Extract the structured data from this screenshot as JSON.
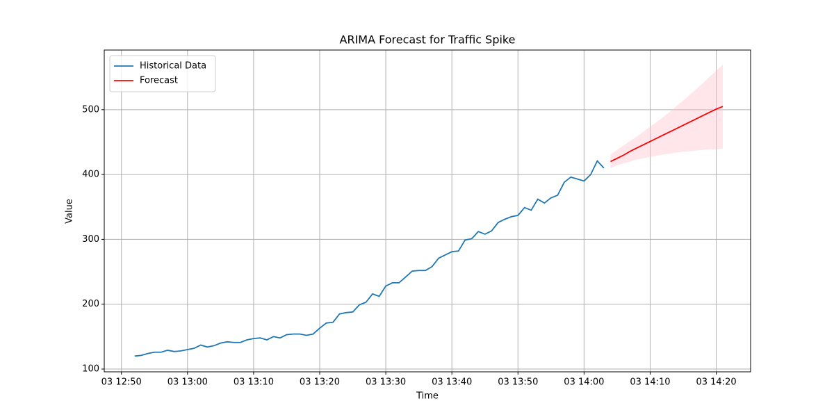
{
  "chart_data": {
    "type": "line",
    "title": "ARIMA Forecast for Traffic Spike",
    "x_label": "Time",
    "y_label": "Value",
    "grid": true,
    "legend": "upper left",
    "xlim": [
      "03 12:47.4",
      "03 14:25.2"
    ],
    "xticks": [
      "03 12:50",
      "03 13:00",
      "03 13:10",
      "03 13:20",
      "03 13:30",
      "03 13:40",
      "03 13:50",
      "03 14:00",
      "03 14:10",
      "03 14:20"
    ],
    "ylim": [
      95.7,
      592
    ],
    "yticks": [
      100,
      200,
      300,
      400,
      500
    ],
    "series": [
      {
        "name": "Historical Data",
        "color": "#1f77b4",
        "x": [
          "03 12:52",
          "03 12:53",
          "03 12:54",
          "03 12:55",
          "03 12:56",
          "03 12:57",
          "03 12:58",
          "03 12:59",
          "03 13:00",
          "03 13:01",
          "03 13:02",
          "03 13:03",
          "03 13:04",
          "03 13:05",
          "03 13:06",
          "03 13:07",
          "03 13:08",
          "03 13:09",
          "03 13:10",
          "03 13:11",
          "03 13:12",
          "03 13:13",
          "03 13:14",
          "03 13:15",
          "03 13:16",
          "03 13:17",
          "03 13:18",
          "03 13:19",
          "03 13:20",
          "03 13:21",
          "03 13:22",
          "03 13:23",
          "03 13:24",
          "03 13:25",
          "03 13:26",
          "03 13:27",
          "03 13:28",
          "03 13:29",
          "03 13:30",
          "03 13:31",
          "03 13:32",
          "03 13:33",
          "03 13:34",
          "03 13:35",
          "03 13:36",
          "03 13:37",
          "03 13:38",
          "03 13:39",
          "03 13:40",
          "03 13:41",
          "03 13:42",
          "03 13:43",
          "03 13:44",
          "03 13:45",
          "03 13:46",
          "03 13:47",
          "03 13:48",
          "03 13:49",
          "03 13:50",
          "03 13:51",
          "03 13:52",
          "03 13:53",
          "03 13:54",
          "03 13:55",
          "03 13:56",
          "03 13:57",
          "03 13:58",
          "03 13:59",
          "03 14:00",
          "03 14:01",
          "03 14:02",
          "03 14:03"
        ],
        "values": [
          120,
          121,
          124,
          126,
          126,
          129,
          127,
          128,
          130,
          132,
          137,
          134,
          136,
          140,
          142,
          141,
          141,
          145,
          147,
          148,
          145,
          150,
          148,
          153,
          154,
          154,
          152,
          154,
          163,
          171,
          172,
          185,
          187,
          188,
          199,
          203,
          216,
          212,
          228,
          233,
          233,
          242,
          251,
          252,
          252,
          258,
          271,
          276,
          281,
          282,
          299,
          301,
          312,
          308,
          313,
          326,
          331,
          335,
          337,
          349,
          345,
          362,
          356,
          364,
          368,
          388,
          396,
          393,
          390,
          400,
          421,
          410
        ]
      },
      {
        "name": "Forecast",
        "color": "#ff0000",
        "band_color": "#ffc0cb",
        "x": [
          "03 14:04",
          "03 14:05",
          "03 14:06",
          "03 14:07",
          "03 14:08",
          "03 14:09",
          "03 14:10",
          "03 14:11",
          "03 14:12",
          "03 14:13",
          "03 14:14",
          "03 14:15",
          "03 14:16",
          "03 14:17",
          "03 14:18",
          "03 14:19",
          "03 14:20",
          "03 14:21"
        ],
        "values": [
          420,
          425,
          430,
          436,
          441,
          446,
          451,
          456,
          461,
          466,
          471,
          476,
          481,
          486,
          491,
          496,
          501,
          505
        ],
        "lower": [
          410,
          414,
          417,
          420,
          423,
          425,
          427,
          429,
          431,
          432,
          434,
          435,
          436,
          437,
          438,
          439,
          439,
          440
        ],
        "upper": [
          431,
          438,
          445,
          452,
          459,
          466,
          474,
          481,
          489,
          497,
          506,
          514,
          523,
          532,
          541,
          551,
          560,
          570
        ]
      }
    ]
  }
}
